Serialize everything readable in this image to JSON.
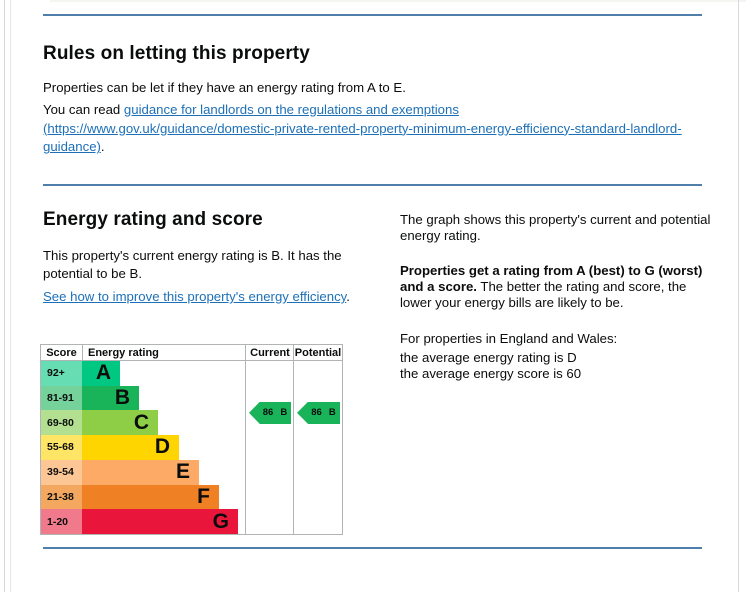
{
  "theme": {
    "rule_blue": "#4e80ab",
    "link_blue": "#1d70b8",
    "text_color": "#0b0c0c",
    "table_border": "#b1b4b6"
  },
  "rules_section": {
    "title": "Rules on letting this property",
    "para1": "Properties can be let if they have an energy rating from A to E.",
    "para2_prefix": "You can read ",
    "link_line1": "guidance for landlords on the regulations and exemptions",
    "link_line2": "(https://www.gov.uk/guidance/domestic-private-rented-property-minimum-energy-efficiency-standard-landlord-",
    "link_line3": "guidance)",
    "para2_suffix": "."
  },
  "energy_section": {
    "title": "Energy rating and score",
    "summary": "This property's current energy rating is B. It has the potential to be B.",
    "improve_link": "See how to improve this property's energy efficiency",
    "improve_suffix": ".",
    "right_para1": "The graph shows this property's current and potential energy rating.",
    "right_para2_bold": "Properties get a rating from A (best) to G (worst) and a score.",
    "right_para2_rest": " The better the rating and score, the lower your energy bills are likely to be.",
    "right_para3": "For properties in England and Wales:",
    "avg_rating_line": "the average energy rating is D",
    "avg_score_line": "the average energy score is 60"
  },
  "chart_data": {
    "type": "bar",
    "title": "Energy rating and score (EPC graph)",
    "columns": [
      "Score",
      "Energy rating",
      "Current",
      "Potential"
    ],
    "bands": [
      {
        "score": "92+",
        "letter": "A",
        "color": "#00c781",
        "score_bg": "#66ddb3",
        "bar_fraction": 0.232
      },
      {
        "score": "81-91",
        "letter": "B",
        "color": "#19b459",
        "score_bg": "#75d29b",
        "bar_fraction": 0.349
      },
      {
        "score": "69-80",
        "letter": "C",
        "color": "#8dce46",
        "score_bg": "#b2e090",
        "bar_fraction": 0.463
      },
      {
        "score": "55-68",
        "letter": "D",
        "color": "#ffd500",
        "score_bg": "#ffe566",
        "bar_fraction": 0.591
      },
      {
        "score": "39-54",
        "letter": "E",
        "color": "#fcaa65",
        "score_bg": "#fdc795",
        "bar_fraction": 0.713
      },
      {
        "score": "21-38",
        "letter": "F",
        "color": "#ef8023",
        "score_bg": "#f4a75f",
        "bar_fraction": 0.835
      },
      {
        "score": "1-20",
        "letter": "G",
        "color": "#e9153b",
        "score_bg": "#f1798c",
        "bar_fraction": 0.951
      }
    ],
    "current": {
      "score": "86",
      "letter": "B",
      "band": "B",
      "arrow_color": "#19b459"
    },
    "potential": {
      "score": "86",
      "letter": "B",
      "band": "B",
      "arrow_color": "#19b459"
    }
  }
}
